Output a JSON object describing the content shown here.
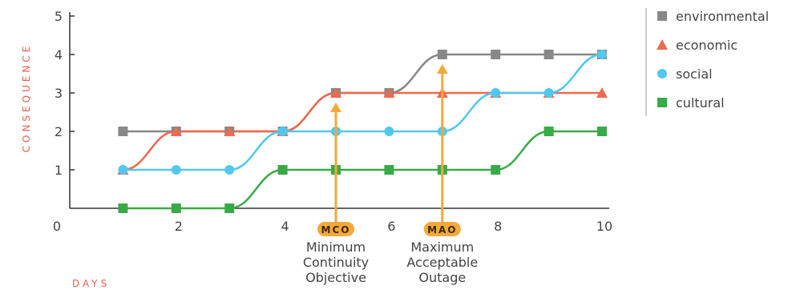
{
  "chart_data": {
    "type": "line",
    "x_ticks": [
      "0",
      "2",
      "4",
      "6",
      "8",
      "10"
    ],
    "y_ticks": [
      "1",
      "2",
      "3",
      "4",
      "5"
    ],
    "xlabel": "DAYS",
    "ylabel": "CONSEQUENCE",
    "xlim": [
      0,
      10
    ],
    "ylim": [
      0,
      5
    ],
    "legend_position": "right",
    "series": [
      {
        "name": "environmental",
        "color": "#888888",
        "marker": "square",
        "x": [
          1,
          2,
          3,
          4,
          5,
          6,
          7,
          8,
          9,
          10
        ],
        "y": [
          2,
          2,
          2,
          2,
          3,
          3,
          4,
          4,
          4,
          4
        ]
      },
      {
        "name": "economic",
        "color": "#ee6a50",
        "marker": "triangle",
        "x": [
          1,
          2,
          3,
          4,
          5,
          6,
          7,
          8,
          9,
          10
        ],
        "y": [
          1,
          2,
          2,
          2,
          3,
          3,
          3,
          3,
          3,
          3
        ]
      },
      {
        "name": "social",
        "color": "#52c8ee",
        "marker": "circle",
        "x": [
          1,
          2,
          3,
          4,
          5,
          6,
          7,
          8,
          9,
          10
        ],
        "y": [
          1,
          1,
          1,
          2,
          2,
          2,
          2,
          3,
          3,
          4
        ]
      },
      {
        "name": "cultural",
        "color": "#3aaa48",
        "marker": "square",
        "x": [
          1,
          2,
          3,
          4,
          5,
          6,
          7,
          8,
          9,
          10
        ],
        "y": [
          0,
          0,
          0,
          1,
          1,
          1,
          1,
          1,
          2,
          2
        ]
      }
    ],
    "annotations": [
      {
        "label": "MCO",
        "x": 5,
        "y": 3,
        "description": [
          "Minimum",
          "Continuity",
          "Objective"
        ],
        "color": "#f5a93a"
      },
      {
        "label": "MAO",
        "x": 7,
        "y": 4,
        "description": [
          "Maximum",
          "Acceptable",
          "Outage"
        ],
        "color": "#f5a93a"
      }
    ]
  }
}
